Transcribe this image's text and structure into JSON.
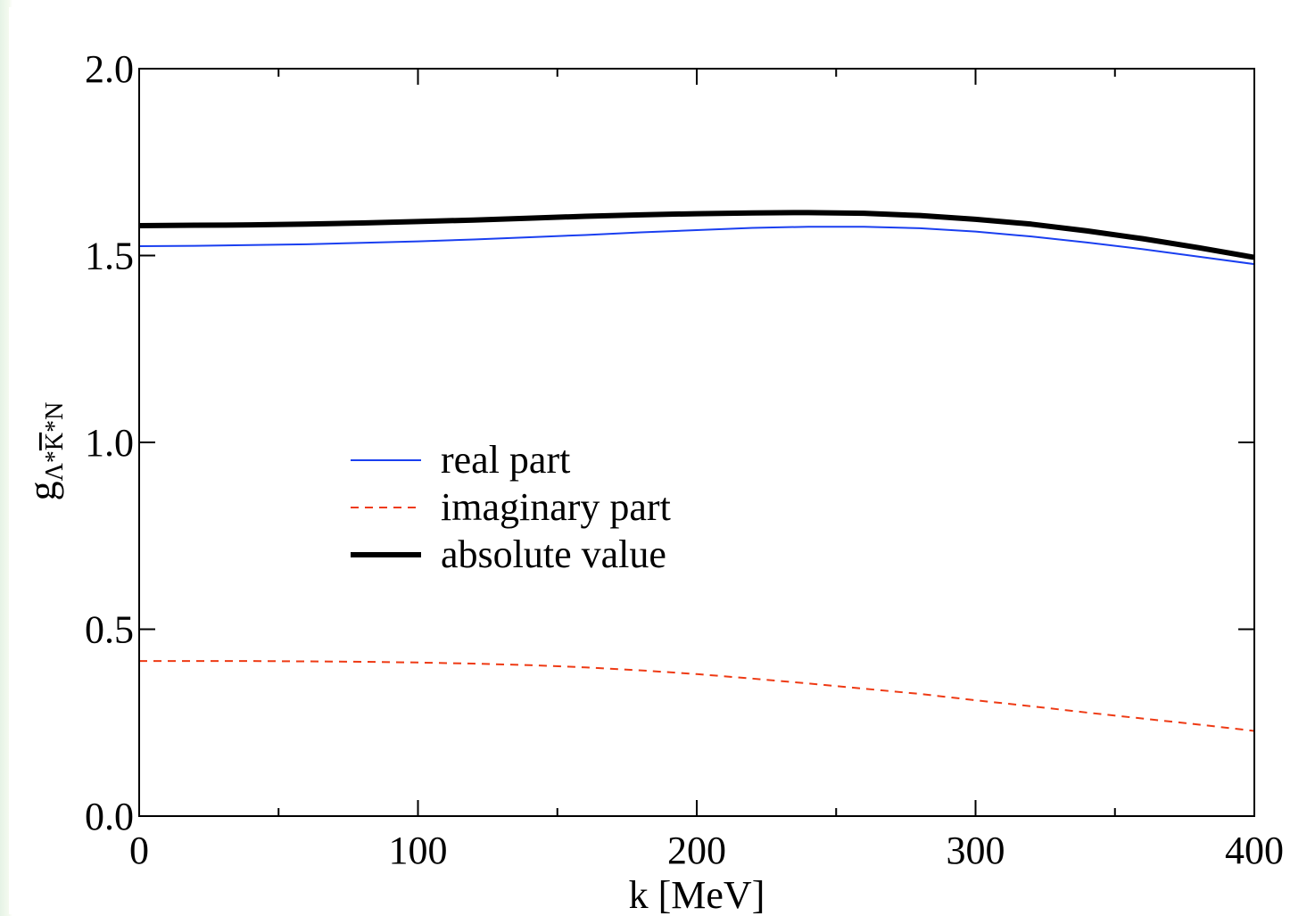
{
  "chart_data": {
    "type": "line",
    "xlabel": "k [MeV]",
    "ylabel": {
      "base": "g",
      "subscript_prefix": "Λ*",
      "subscript_bar": "K",
      "subscript_suffix": "*N"
    },
    "xlim": [
      0,
      400
    ],
    "ylim": [
      0,
      2.0
    ],
    "xticks": [
      "0",
      "100",
      "200",
      "300",
      "400"
    ],
    "yticks": [
      "0.0",
      "0.5",
      "1.0",
      "1.5",
      "2.0"
    ],
    "grid": false,
    "legend_position": "center-left",
    "series": [
      {
        "name": "real part",
        "color": "#1a3ff0",
        "style": "solid",
        "width": "thin",
        "x": [
          0,
          20,
          40,
          60,
          80,
          100,
          120,
          140,
          160,
          180,
          200,
          220,
          240,
          260,
          280,
          300,
          320,
          340,
          360,
          380,
          400
        ],
        "y": [
          1.525,
          1.526,
          1.528,
          1.53,
          1.534,
          1.538,
          1.543,
          1.549,
          1.555,
          1.562,
          1.568,
          1.574,
          1.577,
          1.577,
          1.573,
          1.564,
          1.551,
          1.535,
          1.517,
          1.497,
          1.477
        ]
      },
      {
        "name": "imaginary part",
        "color": "#ee3a14",
        "style": "dashed",
        "width": "thin",
        "x": [
          0,
          20,
          40,
          60,
          80,
          100,
          120,
          140,
          160,
          180,
          200,
          220,
          240,
          260,
          280,
          300,
          320,
          340,
          360,
          380,
          400
        ],
        "y": [
          0.415,
          0.415,
          0.415,
          0.414,
          0.413,
          0.411,
          0.408,
          0.404,
          0.398,
          0.39,
          0.38,
          0.368,
          0.355,
          0.341,
          0.327,
          0.31,
          0.294,
          0.277,
          0.261,
          0.245,
          0.228
        ]
      },
      {
        "name": "absolute value",
        "color": "#000000",
        "style": "solid",
        "width": "thick",
        "x": [
          0,
          20,
          40,
          60,
          80,
          100,
          120,
          140,
          160,
          180,
          200,
          220,
          240,
          260,
          280,
          300,
          320,
          340,
          360,
          380,
          400
        ],
        "y": [
          1.58,
          1.581,
          1.582,
          1.584,
          1.587,
          1.591,
          1.595,
          1.6,
          1.605,
          1.609,
          1.612,
          1.614,
          1.615,
          1.613,
          1.607,
          1.597,
          1.584,
          1.566,
          1.545,
          1.521,
          1.495
        ]
      }
    ]
  }
}
